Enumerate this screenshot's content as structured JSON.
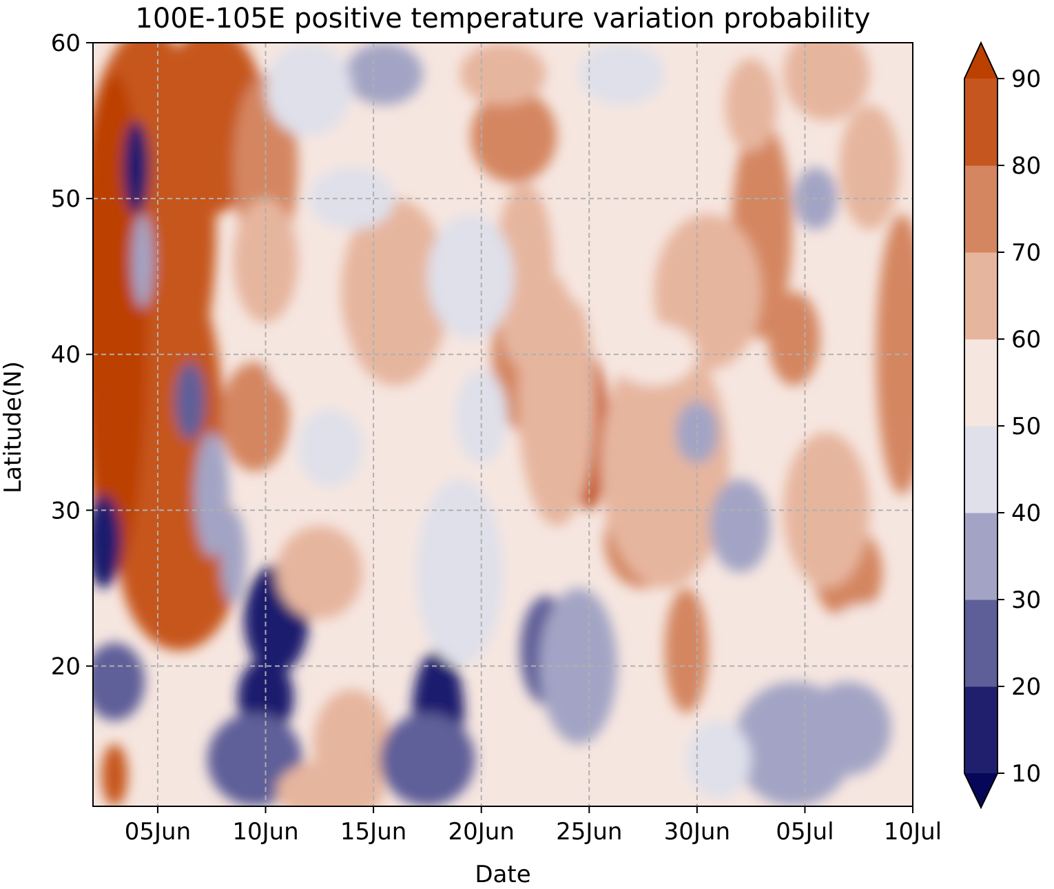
{
  "chart_data": {
    "type": "heatmap",
    "subtype": "filled-contour",
    "title": "100E-105E positive temperature variation probability",
    "xlabel": "Date",
    "ylabel": "Latitude(N)",
    "x_ticks": [
      "05Jun",
      "10Jun",
      "15Jun",
      "20Jun",
      "25Jun",
      "30Jun",
      "05Jul",
      "10Jul"
    ],
    "x_tick_values": [
      5,
      10,
      15,
      20,
      25,
      30,
      35,
      40
    ],
    "xlim": [
      2,
      40
    ],
    "x_unit_note": "day offset from 31 May (05Jun = 5, 10Jul = 40)",
    "y_ticks": [
      "20",
      "30",
      "40",
      "50",
      "60"
    ],
    "y_tick_values": [
      20,
      30,
      40,
      50,
      60
    ],
    "ylim": [
      11,
      60
    ],
    "grid": true,
    "grid_style": "dashed",
    "colorbar": {
      "levels": [
        10,
        20,
        30,
        40,
        50,
        60,
        70,
        80,
        90
      ],
      "tick_labels": [
        "10",
        "20",
        "30",
        "40",
        "50",
        "60",
        "70",
        "80",
        "90"
      ],
      "extend": "both",
      "colors": [
        "#07075a",
        "#1f1f6e",
        "#5e5f99",
        "#a3a4c5",
        "#dfe0ea",
        "#f6e6e0",
        "#e6b59e",
        "#d48660",
        "#c6561f",
        "#bc4100"
      ]
    },
    "field_notes": "Probability (%) of positive temperature variation by date (x) and latitude (y). High values (80-90+) concentrate at 2-9 Jun north of ~25N; low values (10-30) along a band from ~37N on 5 Jun to ~16N on 10 Jun and near 18N on 18 Jun and 23 Jun; moderate 60-80 patches scattered 20 Jun - 10 Jul."
  }
}
